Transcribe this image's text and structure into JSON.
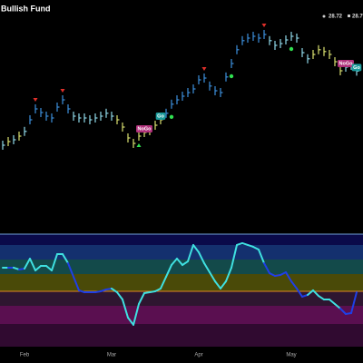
{
  "chart_data": [
    {
      "type": "ohlc",
      "title": "Bullish Fund",
      "header_values": [
        28.72,
        28.79
      ],
      "ylim": [
        24.5,
        30.5
      ],
      "values": [
        26.75,
        26.85,
        26.9,
        27.0,
        27.13,
        27.45,
        27.75,
        27.65,
        27.55,
        27.5,
        27.8,
        28.0,
        27.75,
        27.55,
        27.5,
        27.5,
        27.45,
        27.5,
        27.55,
        27.63,
        27.55,
        27.45,
        27.25,
        26.95,
        26.8,
        27.0,
        27.1,
        27.15,
        27.3,
        27.45,
        27.63,
        27.88,
        28.0,
        28.1,
        28.2,
        28.3,
        28.55,
        28.6,
        28.38,
        28.25,
        28.2,
        28.63,
        29.0,
        29.38,
        29.63,
        29.7,
        29.75,
        29.7,
        29.8,
        29.63,
        29.5,
        29.55,
        29.65,
        29.75,
        29.7,
        29.3,
        29.13,
        29.25,
        29.38,
        29.33,
        29.25,
        29.05,
        28.8,
        28.9,
        28.95,
        28.79
      ],
      "colors": [
        "#8fd8e8",
        "#d8e070",
        "#8fd8e8",
        "#d8e070",
        "#8fd8e8",
        "#3c8fdc",
        "#3c8fdc",
        "#3c8fdc",
        "#3c8fdc",
        "#3c8fdc",
        "#3c8fdc",
        "#3c8fdc",
        "#3c8fdc",
        "#8fd8e8",
        "#8fd8e8",
        "#8fd8e8",
        "#8fd8e8",
        "#8fd8e8",
        "#8fd8e8",
        "#8fd8e8",
        "#8fd8e8",
        "#d8e070",
        "#d8e070",
        "#d8e070",
        "#d8e070",
        "#d8e070",
        "#d8e070",
        "#d8e070",
        "#d8e070",
        "#d8e070",
        "#3c8fdc",
        "#3c8fdc",
        "#3c8fdc",
        "#3c8fdc",
        "#3c8fdc",
        "#3c8fdc",
        "#3c8fdc",
        "#3c8fdc",
        "#3c8fdc",
        "#3c8fdc",
        "#3c8fdc",
        "#3c8fdc",
        "#3c8fdc",
        "#3c8fdc",
        "#3c8fdc",
        "#3c8fdc",
        "#3c8fdc",
        "#3c8fdc",
        "#3c8fdc",
        "#8fd8e8",
        "#8fd8e8",
        "#8fd8e8",
        "#8fd8e8",
        "#8fd8e8",
        "#8fd8e8",
        "#8fd8e8",
        "#8fd8e8",
        "#d8e070",
        "#d8e070",
        "#d8e070",
        "#d8e070",
        "#d8e070",
        "#d8e070",
        "#8fd8e8",
        "#8fd8e8",
        "#8fd8e8"
      ],
      "down_triangles": [
        6,
        11,
        37,
        48
      ],
      "up_triangles": [
        25
      ],
      "dots": [
        31,
        42,
        53
      ],
      "annotations": [
        {
          "text": "NoGo",
          "index": 26
        },
        {
          "text": "Go",
          "index": 29
        },
        {
          "text": "NoGo",
          "index": 63
        },
        {
          "text": "Go",
          "index": 65
        }
      ],
      "x_labels": [
        {
          "label": "Feb",
          "index": 4
        },
        {
          "label": "Mar",
          "index": 20
        },
        {
          "label": "Apr",
          "index": 36
        },
        {
          "label": "May",
          "index": 53
        }
      ]
    },
    {
      "type": "line",
      "ylim": [
        -6,
        6
      ],
      "values": [
        2.48,
        2.48,
        2.48,
        2.29,
        2.38,
        3.43,
        2.19,
        2.67,
        2.67,
        2.19,
        3.9,
        3.9,
        2.95,
        1.52,
        0.1,
        -0.1,
        -0.1,
        -0.1,
        0,
        0.19,
        0.29,
        -0.1,
        -0.86,
        -2.76,
        -3.52,
        -1.33,
        -0.19,
        -0.1,
        0,
        0.29,
        1.52,
        2.76,
        3.43,
        2.76,
        3.14,
        4.86,
        4.1,
        2.95,
        2.0,
        1.05,
        0.29,
        1.05,
        2.48,
        4.86,
        5.05,
        4.86,
        4.67,
        4.38,
        2.95,
        1.9,
        1.62,
        1.71,
        2.0,
        1.05,
        0.29,
        -0.57,
        -0.38,
        0.1,
        -0.48,
        -0.86,
        -0.86,
        -1.33,
        -1.81,
        -2.38,
        -2.29,
        -0.1
      ],
      "go_color": "#1f3fe6",
      "color": "#3fe0e0",
      "zero_line_color": "#e08a20"
    }
  ]
}
